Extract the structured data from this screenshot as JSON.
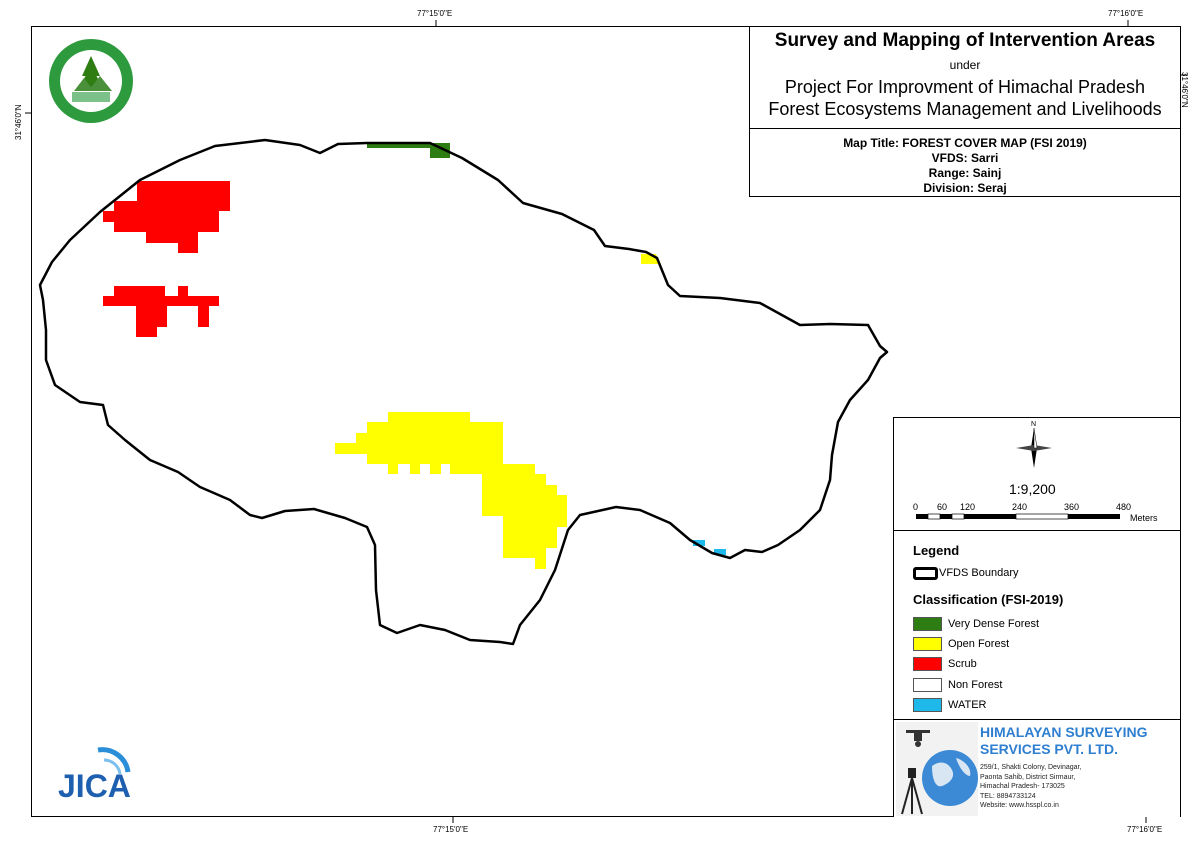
{
  "coords": {
    "top_left": "77°15'0\"E",
    "top_right": "77°16'0\"E",
    "bottom_left": "77°15'0\"E",
    "bottom_right": "77°16'0\"E",
    "left_lat": "31°46'0\"N",
    "right_lat": "31°46'0\"N"
  },
  "title": {
    "main": "Survey and Mapping of Intervention Areas",
    "under": "under",
    "project_line1": "Project For Improvment of Himachal Pradesh",
    "project_line2": "Forest Ecosystems Management and Livelihoods"
  },
  "map_info": {
    "map_title": "Map Title: FOREST COVER MAP (FSI 2019)",
    "vfds": "VFDS: Sarri",
    "range": "Range: Sainj",
    "division": "Division: Seraj"
  },
  "scale": {
    "north_label": "N",
    "ratio": "1:9,200",
    "ticks": [
      "0",
      "60",
      "120",
      "240",
      "360",
      "480"
    ],
    "unit": "Meters"
  },
  "legend": {
    "title": "Legend",
    "boundary_label": "VFDS Boundary",
    "classification_title": "Classification (FSI-2019)",
    "items": [
      {
        "label": "Very Dense Forest",
        "color": "#2e7d12"
      },
      {
        "label": "Open Forest",
        "color": "#ffff00"
      },
      {
        "label": "Scrub",
        "color": "#ff0000"
      },
      {
        "label": "Non Forest",
        "color": "#ffffff"
      },
      {
        "label": "WATER",
        "color": "#1fb8ea"
      }
    ]
  },
  "company": {
    "name_line1": "HIMALAYAN SURVEYING",
    "name_line2": "SERVICES PVT. LTD.",
    "address": [
      "259/1, Shakti Colony, Devinagar,",
      "Paonta Sahib, District Sirmaur,",
      "Himachal Pradesh- 173025",
      "TEL: 8894733124",
      "Website: www.hsspl.co.in"
    ]
  },
  "logos": {
    "jica": "JICA"
  }
}
